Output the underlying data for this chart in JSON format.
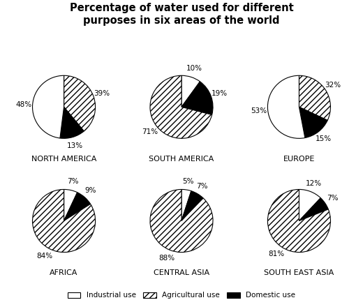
{
  "title": "Percentage of water used for different\npurposes in six areas of the world",
  "regions": [
    {
      "name": "NORTH AMERICA",
      "slices": [
        {
          "type": "agricultural",
          "value": 39
        },
        {
          "type": "domestic",
          "value": 13
        },
        {
          "type": "industrial",
          "value": 48
        }
      ],
      "startangle": 90
    },
    {
      "name": "SOUTH AMERICA",
      "slices": [
        {
          "type": "industrial",
          "value": 10
        },
        {
          "type": "domestic",
          "value": 19
        },
        {
          "type": "agricultural",
          "value": 71
        }
      ],
      "startangle": 90
    },
    {
      "name": "EUROPE",
      "slices": [
        {
          "type": "agricultural",
          "value": 32
        },
        {
          "type": "domestic",
          "value": 15
        },
        {
          "type": "industrial",
          "value": 53
        }
      ],
      "startangle": 90
    },
    {
      "name": "AFRICA",
      "slices": [
        {
          "type": "industrial",
          "value": 7
        },
        {
          "type": "domestic",
          "value": 9
        },
        {
          "type": "agricultural",
          "value": 84
        }
      ],
      "startangle": 90
    },
    {
      "name": "CENTRAL ASIA",
      "slices": [
        {
          "type": "industrial",
          "value": 5
        },
        {
          "type": "domestic",
          "value": 7
        },
        {
          "type": "agricultural",
          "value": 88
        }
      ],
      "startangle": 90
    },
    {
      "name": "SOUTH EAST ASIA",
      "slices": [
        {
          "type": "industrial",
          "value": 12
        },
        {
          "type": "domestic",
          "value": 7
        },
        {
          "type": "agricultural",
          "value": 81
        }
      ],
      "startangle": 90
    }
  ],
  "background_color": "#ffffff",
  "title_fontsize": 10.5,
  "label_fontsize": 7.5,
  "region_fontsize": 8
}
